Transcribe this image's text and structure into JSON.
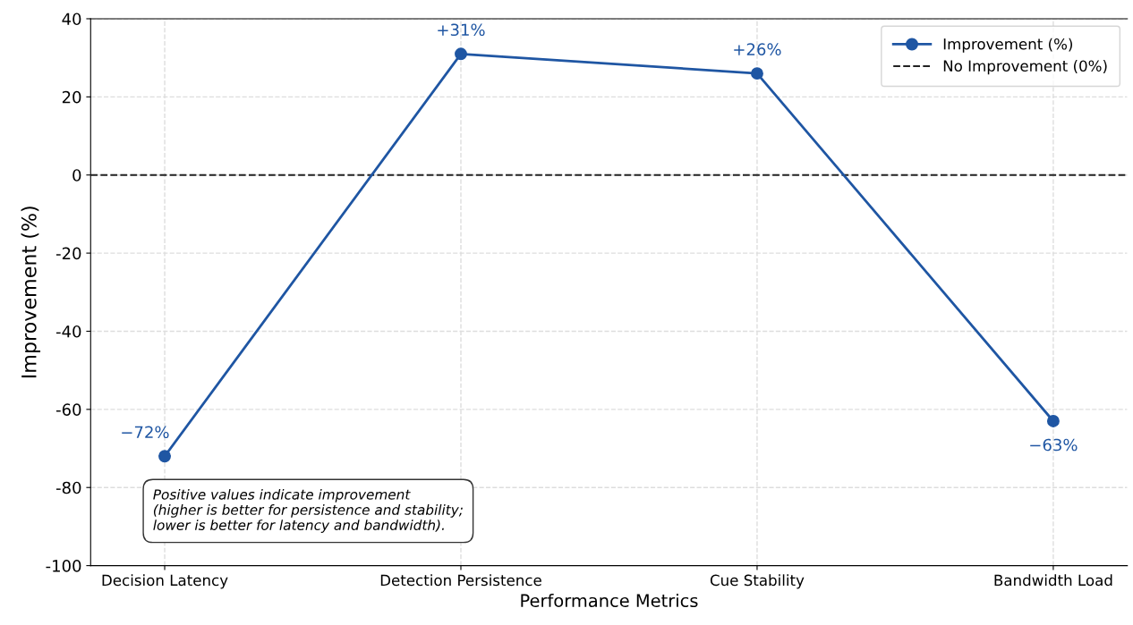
{
  "chart_data": {
    "type": "line",
    "xlabel": "Performance Metrics",
    "ylabel": "Improvement (%)",
    "categories": [
      "Decision Latency",
      "Detection Persistence",
      "Cue Stability",
      "Bandwidth Load"
    ],
    "series": [
      {
        "name": "Improvement (%)",
        "color": "#1f56a3",
        "values": [
          -72,
          31,
          26,
          -63
        ],
        "value_labels": [
          "−72%",
          "+31%",
          "+26%",
          "−63%"
        ]
      }
    ],
    "ylim": [
      -100,
      40
    ],
    "yticks": [
      -100,
      -80,
      -60,
      -40,
      -20,
      0,
      20,
      40
    ],
    "ref_lines": [
      {
        "axis": "y",
        "value": 0,
        "label": "No Improvement (0%)",
        "color": "#222222",
        "line_style": "dashed"
      }
    ],
    "annotations": [
      "Positive values indicate improvement\n(higher is better for persistence and stability;\nlower is better for latency and bandwidth)."
    ],
    "marker": "circle",
    "line_style": "solid",
    "grid": true,
    "legend": "top right"
  }
}
